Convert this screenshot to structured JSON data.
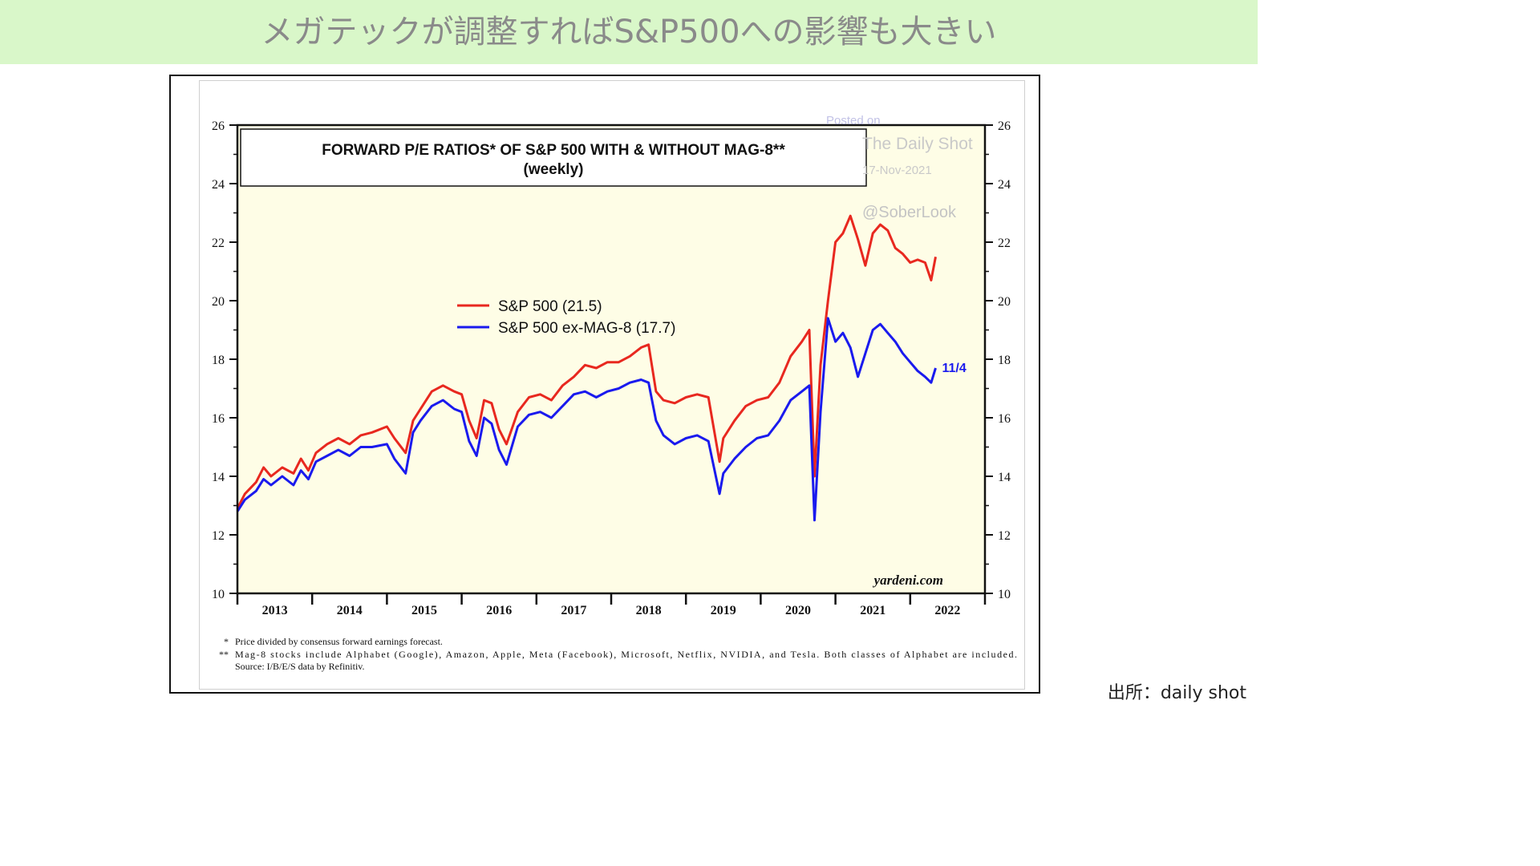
{
  "page": {
    "heading": "メガテックが調整すればS&P500への影響も大きい",
    "source_caption": "出所：daily shot"
  },
  "colors": {
    "banner_bg": "#d9f7c9",
    "plot_bg": "#fefde6",
    "sp500": "#e8281f",
    "ex_mag8": "#1a1aee"
  },
  "chart_data": {
    "type": "line",
    "title_line1": "FORWARD P/E RATIOS* OF S&P 500 WITH & WITHOUT MAG-8**",
    "title_line2": "(weekly)",
    "ylim": [
      10,
      26
    ],
    "y_ticks": [
      "10",
      "12",
      "14",
      "16",
      "18",
      "20",
      "22",
      "24",
      "26"
    ],
    "xlim": [
      2012.5,
      2022.5
    ],
    "x_ticks": [
      "2013",
      "2014",
      "2015",
      "2016",
      "2017",
      "2018",
      "2019",
      "2020",
      "2021",
      "2022"
    ],
    "grid": false,
    "legend_position": "center-left",
    "series": [
      {
        "name": "S&P 500 (21.5)",
        "color": "#e8281f",
        "points": [
          [
            2012.5,
            12.9
          ],
          [
            2012.6,
            13.4
          ],
          [
            2012.75,
            13.8
          ],
          [
            2012.85,
            14.3
          ],
          [
            2012.95,
            14.0
          ],
          [
            2013.1,
            14.3
          ],
          [
            2013.25,
            14.1
          ],
          [
            2013.35,
            14.6
          ],
          [
            2013.45,
            14.2
          ],
          [
            2013.55,
            14.8
          ],
          [
            2013.7,
            15.1
          ],
          [
            2013.85,
            15.3
          ],
          [
            2014.0,
            15.1
          ],
          [
            2014.15,
            15.4
          ],
          [
            2014.3,
            15.5
          ],
          [
            2014.5,
            15.7
          ],
          [
            2014.6,
            15.3
          ],
          [
            2014.75,
            14.8
          ],
          [
            2014.85,
            15.9
          ],
          [
            2014.95,
            16.3
          ],
          [
            2015.1,
            16.9
          ],
          [
            2015.25,
            17.1
          ],
          [
            2015.4,
            16.9
          ],
          [
            2015.5,
            16.8
          ],
          [
            2015.6,
            15.9
          ],
          [
            2015.7,
            15.3
          ],
          [
            2015.8,
            16.6
          ],
          [
            2015.9,
            16.5
          ],
          [
            2016.0,
            15.6
          ],
          [
            2016.1,
            15.1
          ],
          [
            2016.25,
            16.2
          ],
          [
            2016.4,
            16.7
          ],
          [
            2016.55,
            16.8
          ],
          [
            2016.7,
            16.6
          ],
          [
            2016.85,
            17.1
          ],
          [
            2017.0,
            17.4
          ],
          [
            2017.15,
            17.8
          ],
          [
            2017.3,
            17.7
          ],
          [
            2017.45,
            17.9
          ],
          [
            2017.6,
            17.9
          ],
          [
            2017.75,
            18.1
          ],
          [
            2017.9,
            18.4
          ],
          [
            2018.0,
            18.5
          ],
          [
            2018.1,
            16.9
          ],
          [
            2018.2,
            16.6
          ],
          [
            2018.35,
            16.5
          ],
          [
            2018.5,
            16.7
          ],
          [
            2018.65,
            16.8
          ],
          [
            2018.8,
            16.7
          ],
          [
            2018.95,
            14.5
          ],
          [
            2019.0,
            15.3
          ],
          [
            2019.15,
            15.9
          ],
          [
            2019.3,
            16.4
          ],
          [
            2019.45,
            16.6
          ],
          [
            2019.6,
            16.7
          ],
          [
            2019.75,
            17.2
          ],
          [
            2019.9,
            18.1
          ],
          [
            2020.05,
            18.6
          ],
          [
            2020.15,
            19.0
          ],
          [
            2020.22,
            14.0
          ],
          [
            2020.3,
            17.8
          ],
          [
            2020.4,
            20.0
          ],
          [
            2020.5,
            22.0
          ],
          [
            2020.6,
            22.3
          ],
          [
            2020.7,
            22.9
          ],
          [
            2020.8,
            22.1
          ],
          [
            2020.9,
            21.2
          ],
          [
            2021.0,
            22.3
          ],
          [
            2021.1,
            22.6
          ],
          [
            2021.2,
            22.4
          ],
          [
            2021.3,
            21.8
          ],
          [
            2021.4,
            21.6
          ],
          [
            2021.5,
            21.3
          ],
          [
            2021.6,
            21.4
          ],
          [
            2021.7,
            21.3
          ],
          [
            2021.78,
            20.7
          ],
          [
            2021.84,
            21.5
          ]
        ]
      },
      {
        "name": "S&P 500 ex-MAG-8 (17.7)",
        "color": "#1a1aee",
        "points": [
          [
            2012.5,
            12.8
          ],
          [
            2012.6,
            13.2
          ],
          [
            2012.75,
            13.5
          ],
          [
            2012.85,
            13.9
          ],
          [
            2012.95,
            13.7
          ],
          [
            2013.1,
            14.0
          ],
          [
            2013.25,
            13.7
          ],
          [
            2013.35,
            14.2
          ],
          [
            2013.45,
            13.9
          ],
          [
            2013.55,
            14.5
          ],
          [
            2013.7,
            14.7
          ],
          [
            2013.85,
            14.9
          ],
          [
            2014.0,
            14.7
          ],
          [
            2014.15,
            15.0
          ],
          [
            2014.3,
            15.0
          ],
          [
            2014.5,
            15.1
          ],
          [
            2014.6,
            14.6
          ],
          [
            2014.75,
            14.1
          ],
          [
            2014.85,
            15.5
          ],
          [
            2014.95,
            15.9
          ],
          [
            2015.1,
            16.4
          ],
          [
            2015.25,
            16.6
          ],
          [
            2015.4,
            16.3
          ],
          [
            2015.5,
            16.2
          ],
          [
            2015.6,
            15.2
          ],
          [
            2015.7,
            14.7
          ],
          [
            2015.8,
            16.0
          ],
          [
            2015.9,
            15.8
          ],
          [
            2016.0,
            14.9
          ],
          [
            2016.1,
            14.4
          ],
          [
            2016.25,
            15.7
          ],
          [
            2016.4,
            16.1
          ],
          [
            2016.55,
            16.2
          ],
          [
            2016.7,
            16.0
          ],
          [
            2016.85,
            16.4
          ],
          [
            2017.0,
            16.8
          ],
          [
            2017.15,
            16.9
          ],
          [
            2017.3,
            16.7
          ],
          [
            2017.45,
            16.9
          ],
          [
            2017.6,
            17.0
          ],
          [
            2017.75,
            17.2
          ],
          [
            2017.9,
            17.3
          ],
          [
            2018.0,
            17.2
          ],
          [
            2018.1,
            15.9
          ],
          [
            2018.2,
            15.4
          ],
          [
            2018.35,
            15.1
          ],
          [
            2018.5,
            15.3
          ],
          [
            2018.65,
            15.4
          ],
          [
            2018.8,
            15.2
          ],
          [
            2018.95,
            13.4
          ],
          [
            2019.0,
            14.1
          ],
          [
            2019.15,
            14.6
          ],
          [
            2019.3,
            15.0
          ],
          [
            2019.45,
            15.3
          ],
          [
            2019.6,
            15.4
          ],
          [
            2019.75,
            15.9
          ],
          [
            2019.9,
            16.6
          ],
          [
            2020.05,
            16.9
          ],
          [
            2020.15,
            17.1
          ],
          [
            2020.22,
            12.5
          ],
          [
            2020.3,
            16.2
          ],
          [
            2020.4,
            19.4
          ],
          [
            2020.5,
            18.6
          ],
          [
            2020.6,
            18.9
          ],
          [
            2020.7,
            18.4
          ],
          [
            2020.8,
            17.4
          ],
          [
            2020.9,
            18.2
          ],
          [
            2021.0,
            19.0
          ],
          [
            2021.1,
            19.2
          ],
          [
            2021.2,
            18.9
          ],
          [
            2021.3,
            18.6
          ],
          [
            2021.4,
            18.2
          ],
          [
            2021.5,
            17.9
          ],
          [
            2021.6,
            17.6
          ],
          [
            2021.7,
            17.4
          ],
          [
            2021.78,
            17.2
          ],
          [
            2021.84,
            17.7
          ]
        ]
      }
    ],
    "annotations": {
      "end_label": "11/4",
      "watermark_posted": "Posted on",
      "watermark_name": "The Daily Shot",
      "watermark_date": "17-Nov-2021",
      "watermark_handle": "@SoberLook",
      "brand": "yardeni.com"
    },
    "footnotes": [
      {
        "mark": "*",
        "text": "Price divided by consensus forward earnings forecast."
      },
      {
        "mark": "**",
        "text": "Mag-8 stocks include Alphabet (Google), Amazon, Apple, Meta (Facebook), Microsoft, Netflix, NVIDIA, and Tesla. Both classes of Alphabet are included."
      },
      {
        "mark": "",
        "text": "Source: I/B/E/S data by Refinitiv."
      }
    ]
  }
}
